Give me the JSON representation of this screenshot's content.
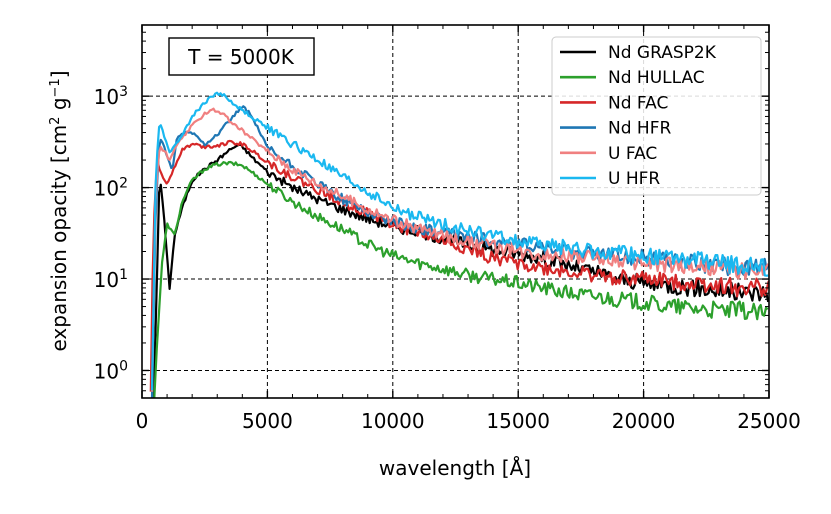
{
  "chart_data": {
    "type": "line",
    "annotation": "T = 5000K",
    "xlabel": "wavelength [Å]",
    "ylabel_parts": [
      "expansion opacity [cm",
      "2",
      " g",
      "−1",
      "]"
    ],
    "xlim": [
      0,
      25000
    ],
    "ylim": [
      0.5,
      6000
    ],
    "yscale": "log",
    "grid": true,
    "legend_position": "top-right",
    "x_ticks": [
      0,
      5000,
      10000,
      15000,
      20000,
      25000
    ],
    "x_tick_labels": [
      "0",
      "5000",
      "10000",
      "15000",
      "20000",
      "25000"
    ],
    "y_ticks": [
      1,
      10,
      100,
      1000
    ],
    "y_tick_labels": [
      {
        "base": "10",
        "exp": "0"
      },
      {
        "base": "10",
        "exp": "1"
      },
      {
        "base": "10",
        "exp": "2"
      },
      {
        "base": "10",
        "exp": "3"
      }
    ],
    "series": [
      {
        "name": "Nd GRASP2K",
        "color": "#000000",
        "points": [
          [
            400,
            0.3
          ],
          [
            550,
            3
          ],
          [
            700,
            150
          ],
          [
            900,
            40
          ],
          [
            1100,
            8
          ],
          [
            1300,
            30
          ],
          [
            1600,
            60
          ],
          [
            2000,
            120
          ],
          [
            2500,
            160
          ],
          [
            3000,
            200
          ],
          [
            3500,
            260
          ],
          [
            3800,
            290
          ],
          [
            4000,
            280
          ],
          [
            4500,
            200
          ],
          [
            5000,
            150
          ],
          [
            6000,
            100
          ],
          [
            7000,
            75
          ],
          [
            8000,
            58
          ],
          [
            9000,
            46
          ],
          [
            10000,
            38
          ],
          [
            11000,
            33
          ],
          [
            12000,
            28
          ],
          [
            13000,
            24
          ],
          [
            14000,
            21
          ],
          [
            15000,
            19
          ],
          [
            16000,
            17
          ],
          [
            17000,
            14
          ],
          [
            18000,
            12
          ],
          [
            19000,
            10
          ],
          [
            20000,
            9
          ],
          [
            21000,
            8.5
          ],
          [
            22000,
            8
          ],
          [
            23000,
            7.5
          ],
          [
            24000,
            7
          ],
          [
            25000,
            7
          ]
        ]
      },
      {
        "name": "Nd HULLAC",
        "color": "#2ca02c",
        "points": [
          [
            450,
            0.3
          ],
          [
            600,
            2
          ],
          [
            800,
            15
          ],
          [
            1000,
            40
          ],
          [
            1300,
            30
          ],
          [
            1600,
            70
          ],
          [
            2000,
            120
          ],
          [
            2500,
            160
          ],
          [
            3000,
            180
          ],
          [
            3500,
            185
          ],
          [
            4000,
            175
          ],
          [
            4500,
            140
          ],
          [
            5000,
            110
          ],
          [
            6000,
            70
          ],
          [
            7000,
            48
          ],
          [
            8000,
            35
          ],
          [
            9000,
            24
          ],
          [
            10000,
            18
          ],
          [
            11000,
            15
          ],
          [
            12000,
            13
          ],
          [
            13000,
            11
          ],
          [
            14000,
            10
          ],
          [
            15000,
            9
          ],
          [
            16000,
            8
          ],
          [
            17000,
            7
          ],
          [
            18000,
            6.5
          ],
          [
            19000,
            6
          ],
          [
            20000,
            5.5
          ],
          [
            21000,
            5
          ],
          [
            22000,
            4.8
          ],
          [
            23000,
            4.5
          ],
          [
            24000,
            4.5
          ],
          [
            25000,
            4
          ]
        ]
      },
      {
        "name": "Nd FAC",
        "color": "#d62728",
        "points": [
          [
            350,
            0.6
          ],
          [
            450,
            30
          ],
          [
            600,
            200
          ],
          [
            800,
            130
          ],
          [
            1000,
            110
          ],
          [
            1300,
            170
          ],
          [
            1600,
            260
          ],
          [
            2000,
            300
          ],
          [
            2500,
            280
          ],
          [
            3000,
            290
          ],
          [
            3500,
            310
          ],
          [
            4000,
            300
          ],
          [
            4500,
            240
          ],
          [
            5000,
            190
          ],
          [
            6000,
            130
          ],
          [
            7000,
            95
          ],
          [
            8000,
            70
          ],
          [
            9000,
            52
          ],
          [
            10000,
            40
          ],
          [
            11000,
            32
          ],
          [
            12000,
            26
          ],
          [
            13000,
            21
          ],
          [
            14000,
            17
          ],
          [
            15000,
            15
          ],
          [
            16000,
            13
          ],
          [
            17000,
            12
          ],
          [
            18000,
            11
          ],
          [
            19000,
            10.5
          ],
          [
            20000,
            10
          ],
          [
            21000,
            9.5
          ],
          [
            22000,
            9
          ],
          [
            23000,
            8.5
          ],
          [
            24000,
            8
          ],
          [
            25000,
            8
          ]
        ]
      },
      {
        "name": "Nd HFR",
        "color": "#1f77b4",
        "points": [
          [
            400,
            0.5
          ],
          [
            550,
            60
          ],
          [
            700,
            350
          ],
          [
            850,
            300
          ],
          [
            1000,
            220
          ],
          [
            1200,
            150
          ],
          [
            1400,
            350
          ],
          [
            1700,
            400
          ],
          [
            2000,
            400
          ],
          [
            2500,
            300
          ],
          [
            3000,
            380
          ],
          [
            3500,
            550
          ],
          [
            4000,
            760
          ],
          [
            4300,
            650
          ],
          [
            4700,
            400
          ],
          [
            5000,
            270
          ],
          [
            6000,
            170
          ],
          [
            7000,
            110
          ],
          [
            8000,
            75
          ],
          [
            9000,
            55
          ],
          [
            10000,
            42
          ],
          [
            11000,
            36
          ],
          [
            12000,
            32
          ],
          [
            13000,
            29
          ],
          [
            14000,
            26
          ],
          [
            15000,
            24
          ],
          [
            16000,
            22
          ],
          [
            17000,
            20
          ],
          [
            18000,
            19
          ],
          [
            19000,
            18
          ],
          [
            20000,
            17
          ],
          [
            21000,
            16
          ],
          [
            22000,
            15
          ],
          [
            23000,
            14
          ],
          [
            24000,
            13.5
          ],
          [
            25000,
            13
          ]
        ]
      },
      {
        "name": "U FAC",
        "color": "#f08080",
        "points": [
          [
            400,
            0.6
          ],
          [
            550,
            100
          ],
          [
            700,
            280
          ],
          [
            900,
            250
          ],
          [
            1100,
            200
          ],
          [
            1300,
            260
          ],
          [
            1600,
            350
          ],
          [
            2000,
            470
          ],
          [
            2500,
            650
          ],
          [
            2800,
            720
          ],
          [
            3200,
            650
          ],
          [
            3600,
            500
          ],
          [
            4000,
            420
          ],
          [
            5000,
            250
          ],
          [
            6000,
            160
          ],
          [
            7000,
            110
          ],
          [
            8000,
            80
          ],
          [
            9000,
            58
          ],
          [
            10000,
            44
          ],
          [
            11000,
            36
          ],
          [
            12000,
            30
          ],
          [
            13000,
            26
          ],
          [
            14000,
            23
          ],
          [
            15000,
            20
          ],
          [
            16000,
            19
          ],
          [
            17000,
            18
          ],
          [
            18000,
            17
          ],
          [
            19000,
            16
          ],
          [
            20000,
            15
          ],
          [
            21000,
            14
          ],
          [
            22000,
            13.5
          ],
          [
            23000,
            13
          ],
          [
            24000,
            12.5
          ],
          [
            25000,
            12
          ]
        ]
      },
      {
        "name": "U HFR",
        "color": "#1ab8f0",
        "points": [
          [
            400,
            0.6
          ],
          [
            550,
            150
          ],
          [
            700,
            550
          ],
          [
            900,
            350
          ],
          [
            1100,
            250
          ],
          [
            1300,
            280
          ],
          [
            1600,
            380
          ],
          [
            2000,
            600
          ],
          [
            2500,
            850
          ],
          [
            3000,
            1100
          ],
          [
            3300,
            1000
          ],
          [
            3700,
            800
          ],
          [
            4000,
            700
          ],
          [
            5000,
            450
          ],
          [
            6000,
            300
          ],
          [
            7000,
            200
          ],
          [
            8000,
            130
          ],
          [
            9000,
            90
          ],
          [
            10000,
            60
          ],
          [
            11000,
            48
          ],
          [
            12000,
            40
          ],
          [
            13000,
            34
          ],
          [
            14000,
            30
          ],
          [
            15000,
            26
          ],
          [
            16000,
            24
          ],
          [
            17000,
            22
          ],
          [
            18000,
            20
          ],
          [
            19000,
            19
          ],
          [
            20000,
            18
          ],
          [
            21000,
            17
          ],
          [
            22000,
            16
          ],
          [
            23000,
            15
          ],
          [
            24000,
            14
          ],
          [
            25000,
            13
          ]
        ]
      }
    ]
  }
}
